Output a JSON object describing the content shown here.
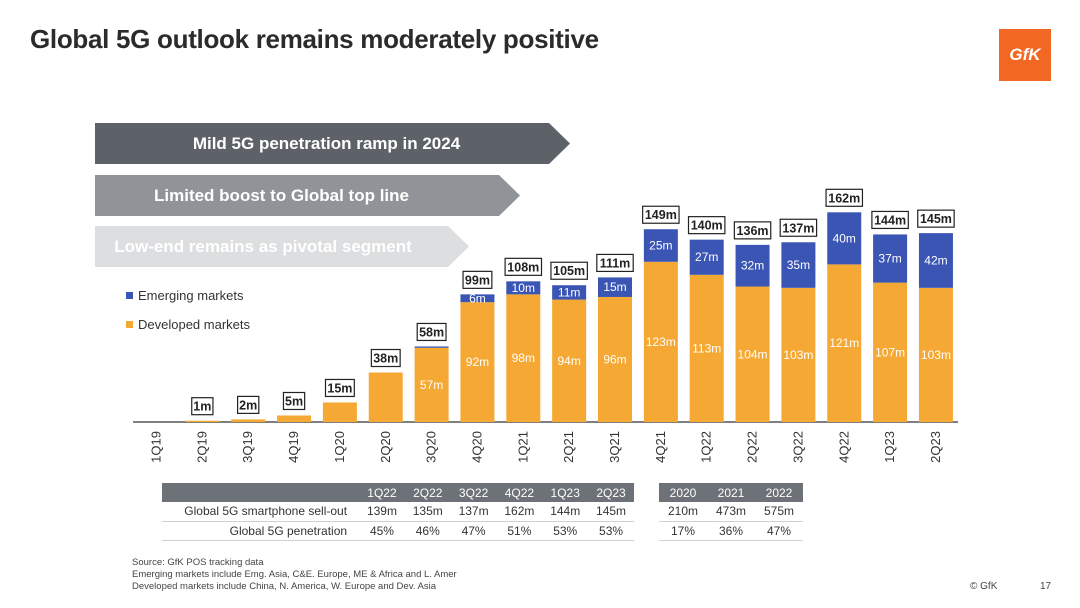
{
  "title": "Global 5G outlook remains moderately positive",
  "logo": "GfK",
  "arrows": [
    "Mild 5G penetration ramp in 2024",
    "Limited boost to Global top line",
    "Low-end remains as pivotal segment"
  ],
  "legend": {
    "emerging": "Emerging markets",
    "developed": "Developed markets"
  },
  "colors": {
    "emerging": "#3a55b4",
    "developed": "#f5a833",
    "axis": "#333333",
    "arrow_dark": "#5c6268",
    "arrow_mid": "#909498",
    "arrow_light": "#dcdee0",
    "logo": "#f26722"
  },
  "chart_data": {
    "type": "bar",
    "stacked": true,
    "categories": [
      "1Q19",
      "2Q19",
      "3Q19",
      "4Q19",
      "1Q20",
      "2Q20",
      "3Q20",
      "4Q20",
      "1Q21",
      "2Q21",
      "3Q21",
      "4Q21",
      "1Q22",
      "2Q22",
      "3Q22",
      "4Q22",
      "1Q23",
      "2Q23"
    ],
    "totals": [
      "",
      "1m",
      "2m",
      "5m",
      "15m",
      "38m",
      "58m",
      "99m",
      "108m",
      "105m",
      "111m",
      "149m",
      "140m",
      "136m",
      "137m",
      "162m",
      "144m",
      "145m"
    ],
    "series": [
      {
        "name": "Developed markets",
        "values": [
          0,
          1,
          2,
          5,
          15,
          38,
          57,
          92,
          98,
          94,
          96,
          123,
          113,
          104,
          103,
          121,
          107,
          103
        ],
        "labels": [
          "",
          "",
          "",
          "",
          "",
          "",
          "57m",
          "92m",
          "98m",
          "94m",
          "96m",
          "123m",
          "113m",
          "104m",
          "103m",
          "121m",
          "107m",
          "103m"
        ]
      },
      {
        "name": "Emerging markets",
        "values": [
          0,
          0,
          0,
          0,
          0,
          0,
          1,
          6,
          10,
          11,
          15,
          25,
          27,
          32,
          35,
          40,
          37,
          42
        ],
        "labels": [
          "",
          "",
          "",
          "",
          "",
          "",
          "",
          "6m",
          "10m",
          "11m",
          "15m",
          "25m",
          "27m",
          "32m",
          "35m",
          "40m",
          "37m",
          "42m"
        ]
      }
    ],
    "ylim": [
      0,
      170
    ],
    "legend_position": "left"
  },
  "table_quarters": {
    "headers": [
      "",
      "1Q22",
      "2Q22",
      "3Q22",
      "4Q22",
      "1Q23",
      "2Q23"
    ],
    "rows": [
      [
        "Global 5G smartphone sell-out",
        "139m",
        "135m",
        "137m",
        "162m",
        "144m",
        "145m"
      ],
      [
        "Global 5G penetration",
        "45%",
        "46%",
        "47%",
        "51%",
        "53%",
        "53%"
      ]
    ]
  },
  "table_years": {
    "headers": [
      "2020",
      "2021",
      "2022"
    ],
    "rows": [
      [
        "210m",
        "473m",
        "575m"
      ],
      [
        "17%",
        "36%",
        "47%"
      ]
    ]
  },
  "source_lines": [
    "Source: GfK POS tracking data",
    "Emerging markets include Emg. Asia, C&E. Europe, ME & Africa and L. Amer",
    "Developed markets include China, N. America, W. Europe and Dev. Asia"
  ],
  "copyright": "© GfK",
  "page_number": "17"
}
